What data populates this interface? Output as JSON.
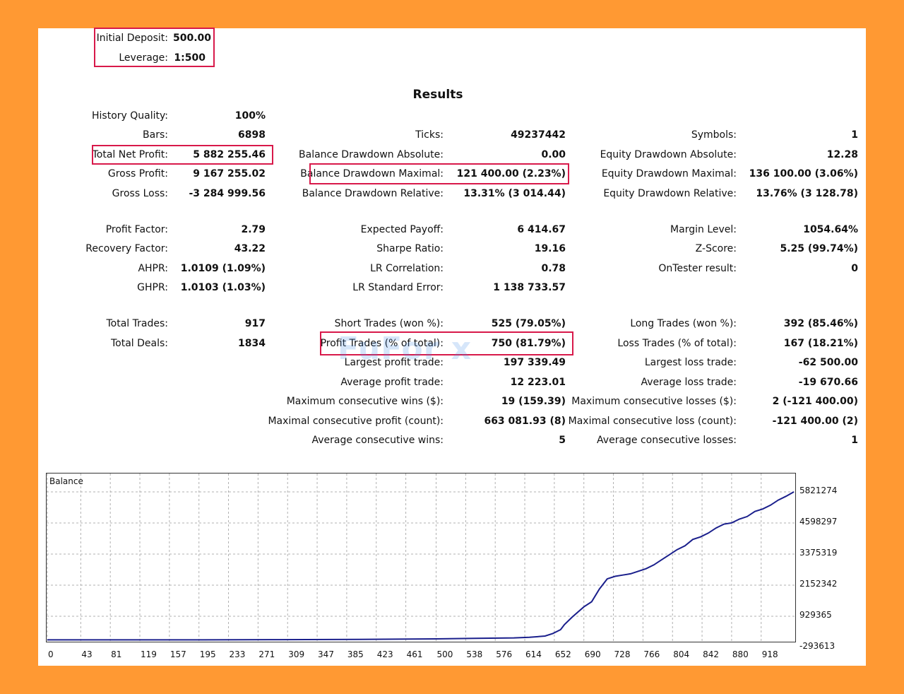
{
  "header": {
    "initial_deposit": {
      "label": "Initial Deposit:",
      "value": "500.00"
    },
    "leverage": {
      "label": "Leverage:",
      "value": "1:500"
    }
  },
  "results_title": "Results",
  "col1": [
    {
      "label": "History Quality:",
      "value": "100%"
    },
    {
      "label": "Bars:",
      "value": "6898"
    },
    {
      "label": "Total Net Profit:",
      "value": "5 882 255.46"
    },
    {
      "label": "Gross Profit:",
      "value": "9 167 255.02"
    },
    {
      "label": "Gross Loss:",
      "value": "-3 284 999.56"
    },
    {
      "label": "Profit Factor:",
      "value": "2.79"
    },
    {
      "label": "Recovery Factor:",
      "value": "43.22"
    },
    {
      "label": "AHPR:",
      "value": "1.0109 (1.09%)"
    },
    {
      "label": "GHPR:",
      "value": "1.0103 (1.03%)"
    },
    {
      "label": "Total Trades:",
      "value": "917"
    },
    {
      "label": "Total Deals:",
      "value": "1834"
    }
  ],
  "col2": [
    {
      "label": "Ticks:",
      "value": "49237442"
    },
    {
      "label": "Balance Drawdown Absolute:",
      "value": "0.00"
    },
    {
      "label": "Balance Drawdown Maximal:",
      "value": "121 400.00 (2.23%)"
    },
    {
      "label": "Balance Drawdown Relative:",
      "value": "13.31% (3 014.44)"
    },
    {
      "label": "Expected Payoff:",
      "value": "6 414.67"
    },
    {
      "label": "Sharpe Ratio:",
      "value": "19.16"
    },
    {
      "label": "LR Correlation:",
      "value": "0.78"
    },
    {
      "label": "LR Standard Error:",
      "value": "1 138 733.57"
    },
    {
      "label": "Short Trades (won %):",
      "value": "525 (79.05%)"
    },
    {
      "label": "Profit Trades (% of total):",
      "value": "750 (81.79%)"
    },
    {
      "label": "Largest profit trade:",
      "value": "197 339.49"
    },
    {
      "label": "Average profit trade:",
      "value": "12 223.01"
    },
    {
      "label": "Maximum consecutive wins ($):",
      "value": "19 (159.39)"
    },
    {
      "label": "Maximal consecutive profit (count):",
      "value": "663 081.93 (8)"
    },
    {
      "label": "Average consecutive wins:",
      "value": "5"
    }
  ],
  "col3": [
    {
      "label": "Symbols:",
      "value": "1"
    },
    {
      "label": "Equity Drawdown Absolute:",
      "value": "12.28"
    },
    {
      "label": "Equity Drawdown Maximal:",
      "value": "136 100.00 (3.06%)"
    },
    {
      "label": "Equity Drawdown Relative:",
      "value": "13.76% (3 128.78)"
    },
    {
      "label": "Margin Level:",
      "value": "1054.64%"
    },
    {
      "label": "Z-Score:",
      "value": "5.25 (99.74%)"
    },
    {
      "label": "OnTester result:",
      "value": "0"
    },
    {
      "label": "Long Trades (won %):",
      "value": "392 (85.46%)"
    },
    {
      "label": "Loss Trades (% of total):",
      "value": "167 (18.21%)"
    },
    {
      "label": "Largest loss trade:",
      "value": "-62 500.00"
    },
    {
      "label": "Average loss trade:",
      "value": "-19 670.66"
    },
    {
      "label": "Maximum consecutive losses ($):",
      "value": "2 (-121 400.00)"
    },
    {
      "label": "Maximal consecutive loss (count):",
      "value": "-121 400.00 (2)"
    },
    {
      "label": "Average consecutive losses:",
      "value": "1"
    }
  ],
  "watermark": "FuFor x",
  "colors": {
    "background": "#ff9933",
    "highlight": "#d8194a",
    "line": "#1a1f8c",
    "grid": "#b0b0b0"
  },
  "chart_data": {
    "type": "line",
    "title": "Balance",
    "xlabel": "",
    "ylabel": "",
    "x_ticks": [
      "0",
      "43",
      "81",
      "119",
      "157",
      "195",
      "233",
      "271",
      "309",
      "347",
      "385",
      "423",
      "461",
      "500",
      "538",
      "576",
      "614",
      "652",
      "690",
      "728",
      "766",
      "804",
      "842",
      "880",
      "918"
    ],
    "y_ticks": [
      "5821274",
      "4598297",
      "3375319",
      "2152342",
      "929365",
      "-293613"
    ],
    "xlim": [
      0,
      960
    ],
    "ylim": [
      -293613,
      5821274
    ],
    "grid": true,
    "series": [
      {
        "name": "",
        "x": [
          0,
          100,
          200,
          300,
          400,
          500,
          550,
          600,
          620,
          640,
          650,
          660,
          665,
          675,
          690,
          700,
          710,
          720,
          730,
          740,
          750,
          760,
          770,
          780,
          790,
          800,
          810,
          820,
          830,
          840,
          850,
          860,
          870,
          880,
          890,
          900,
          910,
          920,
          930,
          940,
          950,
          960
        ],
        "y": [
          0,
          0,
          0,
          10000,
          20000,
          40000,
          60000,
          80000,
          100000,
          150000,
          250000,
          400000,
          600000,
          900000,
          1300000,
          1500000,
          2000000,
          2400000,
          2500000,
          2550000,
          2600000,
          2700000,
          2800000,
          2950000,
          3150000,
          3350000,
          3550000,
          3700000,
          3950000,
          4050000,
          4200000,
          4400000,
          4550000,
          4600000,
          4750000,
          4850000,
          5050000,
          5150000,
          5300000,
          5500000,
          5650000,
          5820000
        ]
      }
    ]
  }
}
